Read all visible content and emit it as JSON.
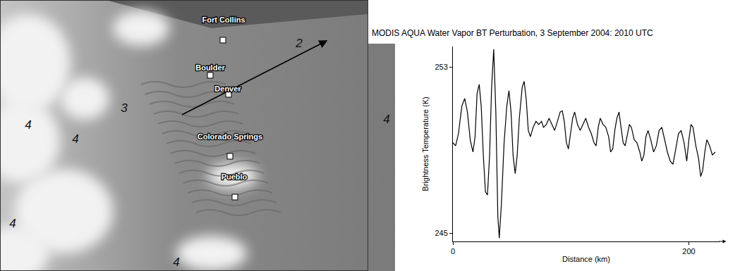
{
  "chart_data": {
    "type": "line",
    "title": "MODIS AQUA Water Vapor BT Perturbation, 3 September 2004: 2010 UTC",
    "x_label": "Distance (km)",
    "y_label": "Brightness Temperature (K)",
    "x": [
      0,
      2.3,
      4.7,
      7.6,
      10.0,
      12.3,
      14.7,
      17.0,
      18.8,
      20.5,
      22.3,
      24.0,
      25.8,
      27.6,
      29.3,
      31.1,
      32.8,
      34.6,
      36.4,
      38.1,
      39.3,
      41.1,
      43.4,
      45.7,
      47.5,
      49.3,
      51.0,
      52.8,
      54.5,
      56.3,
      58.7,
      60.4,
      62.2,
      63.9,
      65.7,
      68.0,
      70.4,
      72.7,
      75.1,
      76.8,
      79.2,
      81.5,
      83.9,
      86.2,
      88.6,
      90.9,
      92.7,
      94.4,
      96.2,
      97.9,
      99.7,
      101.5,
      103.2,
      105.6,
      107.9,
      110.3,
      112.6,
      115.0,
      117.3,
      119.6,
      121.4,
      123.2,
      124.9,
      127.3,
      129.6,
      132.0,
      133.7,
      135.5,
      137.2,
      139.0,
      140.8,
      142.5,
      144.3,
      146.0,
      147.8,
      149.6,
      151.3,
      153.7,
      156.0,
      158.4,
      160.1,
      161.9,
      163.6,
      165.4,
      167.7,
      170.1,
      172.4,
      174.8,
      177.1,
      179.5,
      181.8,
      184.2,
      186.5,
      188.9,
      191.2,
      193.5,
      195.9,
      198.2,
      200.0,
      201.8,
      203.5,
      205.9,
      208.2,
      210.0,
      211.7,
      213.5,
      215.2,
      217.6,
      219.9,
      222.3
    ],
    "values": [
      249.36,
      249.21,
      249.8,
      251.13,
      251.49,
      250.84,
      249.5,
      248.91,
      249.65,
      251.73,
      252.17,
      251.13,
      248.76,
      246.99,
      246.84,
      248.76,
      252.02,
      253.86,
      250.84,
      245.8,
      244.76,
      246.39,
      249.36,
      251.13,
      251.87,
      250.84,
      248.76,
      247.87,
      248.76,
      250.54,
      252.02,
      252.32,
      251.43,
      249.95,
      249.65,
      250.1,
      250.39,
      250.24,
      250.39,
      250.1,
      250.24,
      250.54,
      250.24,
      249.95,
      250.39,
      250.84,
      250.9,
      250.39,
      249.36,
      249.06,
      249.8,
      250.54,
      250.84,
      250.24,
      249.95,
      250.24,
      250.54,
      250.1,
      249.8,
      249.36,
      249.21,
      250.1,
      250.54,
      250.24,
      250.1,
      249.65,
      248.91,
      249.06,
      249.95,
      250.54,
      250.84,
      250.1,
      249.36,
      249.21,
      249.8,
      250.24,
      250.1,
      249.5,
      249.36,
      248.91,
      248.47,
      248.76,
      249.65,
      249.95,
      249.5,
      248.91,
      249.21,
      249.95,
      250.1,
      249.5,
      248.91,
      248.47,
      248.32,
      249.06,
      249.8,
      249.95,
      249.36,
      248.47,
      249.5,
      250.24,
      250.1,
      249.21,
      248.61,
      247.73,
      248.02,
      248.91,
      249.5,
      249.21,
      248.76,
      248.91
    ],
    "color": "#000000",
    "xlim": [
      0,
      226
    ],
    "xticks": [
      0,
      200
    ],
    "ylim": [
      244.6,
      254.0
    ],
    "yticks": [
      245,
      253
    ],
    "grid": false
  },
  "map": {
    "cities": [
      "Fort Collins",
      "Boulder",
      "Denver",
      "Colorado Springs",
      "Pueblo"
    ],
    "region_labels": [
      "2",
      "3",
      "4",
      "4",
      "4",
      "4",
      "4"
    ]
  }
}
